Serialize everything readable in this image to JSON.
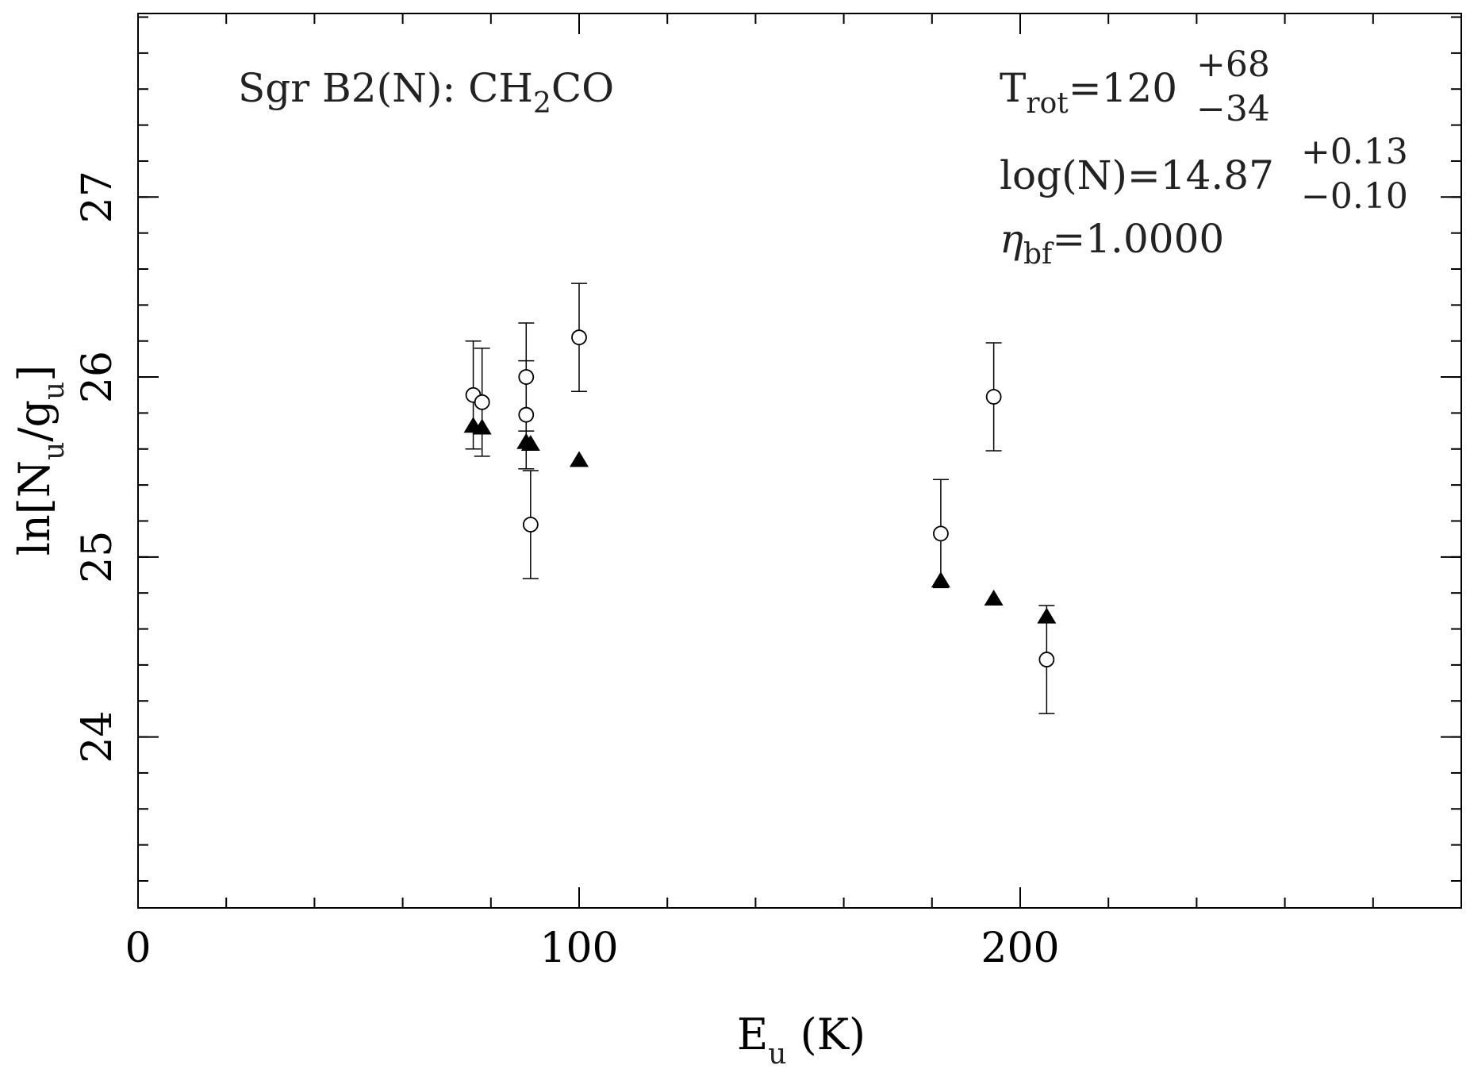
{
  "chart_data": {
    "type": "scatter",
    "title": "",
    "xlabel": "E",
    "xlabel_sub": "u",
    "xlabel_unit": " (K)",
    "ylabel_prefix": "ln[N",
    "ylabel_sub1": "u",
    "ylabel_mid": "/g",
    "ylabel_sub2": "u",
    "ylabel_suffix": "]",
    "xlim": [
      0,
      300
    ],
    "ylim": [
      23.05,
      28.02
    ],
    "x_ticks": [
      0,
      100,
      200
    ],
    "x_tick_labels": [
      "0",
      "100",
      "200"
    ],
    "x_minor_step": 20,
    "y_ticks": [
      24,
      25,
      26,
      27
    ],
    "y_tick_labels": [
      "24",
      "25",
      "26",
      "27"
    ],
    "y_minor_step": 0.2,
    "grid": false,
    "series": [
      {
        "marker": "open-circle",
        "points": [
          {
            "x": 76,
            "y": 25.9,
            "err_low": 0.3,
            "err_high": 0.3
          },
          {
            "x": 78,
            "y": 25.86,
            "err_low": 0.3,
            "err_high": 0.3
          },
          {
            "x": 88,
            "y": 26.0,
            "err_low": 0.3,
            "err_high": 0.3
          },
          {
            "x": 88,
            "y": 25.79,
            "err_low": 0.3,
            "err_high": 0.3
          },
          {
            "x": 89,
            "y": 25.18,
            "err_low": 0.3,
            "err_high": 0.3
          },
          {
            "x": 100,
            "y": 26.22,
            "err_low": 0.3,
            "err_high": 0.3
          },
          {
            "x": 182,
            "y": 25.13,
            "err_low": 0.3,
            "err_high": 0.3
          },
          {
            "x": 194,
            "y": 25.89,
            "err_low": 0.3,
            "err_high": 0.3
          },
          {
            "x": 206,
            "y": 24.43,
            "err_low": 0.3,
            "err_high": 0.3
          }
        ]
      },
      {
        "marker": "filled-triangle",
        "points": [
          {
            "x": 76,
            "y": 25.73
          },
          {
            "x": 78,
            "y": 25.72
          },
          {
            "x": 88,
            "y": 25.64
          },
          {
            "x": 89,
            "y": 25.63
          },
          {
            "x": 100,
            "y": 25.54
          },
          {
            "x": 182,
            "y": 24.87
          },
          {
            "x": 194,
            "y": 24.77
          },
          {
            "x": 206,
            "y": 24.67
          }
        ]
      }
    ],
    "annotations": {
      "source_prefix": "Sgr B2(N): CH",
      "source_sub": "2",
      "source_suffix": "CO",
      "trot_label": "T",
      "trot_sub": "rot",
      "trot_value": "=120",
      "trot_plus": "+68",
      "trot_minus": "−34",
      "logn_value": "log(N)=14.87",
      "logn_plus": "+0.13",
      "logn_minus": "−0.10",
      "eta_label": "η",
      "eta_sub": "bf",
      "eta_value": "=1.0000"
    }
  }
}
